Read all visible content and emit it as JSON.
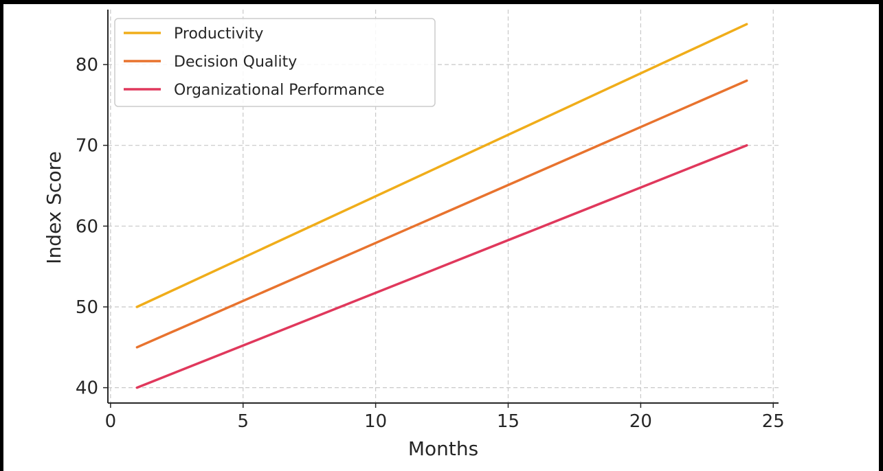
{
  "chart_data": {
    "type": "line",
    "title": "",
    "xlabel": "Months",
    "ylabel": "Index Score",
    "xlim": [
      -0.1,
      25.2
    ],
    "ylim": [
      38.1,
      86.8
    ],
    "xticks": [
      0,
      5,
      10,
      15,
      20,
      25
    ],
    "yticks": [
      40,
      50,
      60,
      70,
      80
    ],
    "grid": true,
    "legend_position": "top-left",
    "x": [
      1,
      24
    ],
    "series": [
      {
        "name": "Productivity",
        "color": "#F0AD1A",
        "values": [
          50,
          85
        ]
      },
      {
        "name": "Decision Quality",
        "color": "#E8732E",
        "values": [
          45,
          78
        ]
      },
      {
        "name": "Organizational Performance",
        "color": "#E0385C",
        "values": [
          40,
          70
        ]
      }
    ]
  }
}
